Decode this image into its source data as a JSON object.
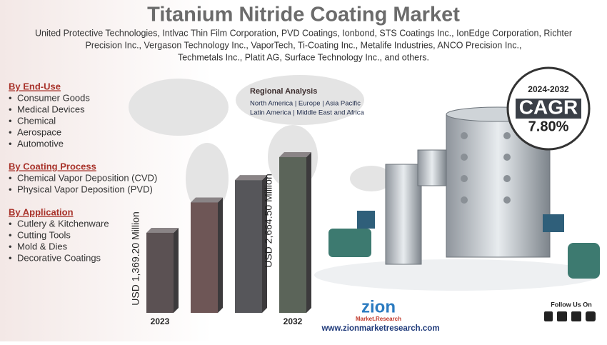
{
  "title": "Titanium Nitride Coating Market",
  "companies": [
    "United Protective Technologies, Intlvac Thin Film Corporation, PVD Coatings, Ionbond, STS Coatings Inc., IonEdge Corporation, Richter",
    "Precision Inc., Vergason Technology Inc., VaporTech, Ti-Coating Inc., Metalife Industries, ANCO Precision Inc.,",
    "Techmetals Inc., Platit AG, Surface Technology Inc., and others."
  ],
  "segments": [
    {
      "title": "By End-Use",
      "items": [
        "Consumer Goods",
        "Medical Devices",
        "Chemical",
        "Aerospace",
        "Automotive"
      ]
    },
    {
      "title": "By Coating Process",
      "items": [
        "Chemical Vapor Deposition (CVD)",
        "Physical Vapor Deposition (PVD)"
      ]
    },
    {
      "title": "By Application",
      "items": [
        "Cutlery & Kitchenware",
        "Cutting Tools",
        "Mold & Dies",
        "Decorative Coatings"
      ]
    }
  ],
  "regional": {
    "title": "Regional Analysis",
    "lines": [
      "North America | Europe | Asia Pacific",
      "Latin America | Middle East and Africa"
    ]
  },
  "cagr": {
    "period": "2024-2032",
    "label": "CAGR",
    "value": "7.80%"
  },
  "logo": {
    "name": "zion",
    "sub": "Market.Research"
  },
  "website": "www.zionmarketresearch.com",
  "follow": "Follow Us On",
  "chart_data": {
    "type": "bar",
    "categories": [
      "2023",
      null,
      null,
      "2032"
    ],
    "values": [
      1369.2,
      1889,
      2272,
      2664.5
    ],
    "value_labels": [
      "USD 1,369.20 Million",
      null,
      null,
      "USD 2,664.50 Million"
    ],
    "colors": [
      "#5b5153",
      "#6e5656",
      "#56565a",
      "#5b6459"
    ]
  }
}
